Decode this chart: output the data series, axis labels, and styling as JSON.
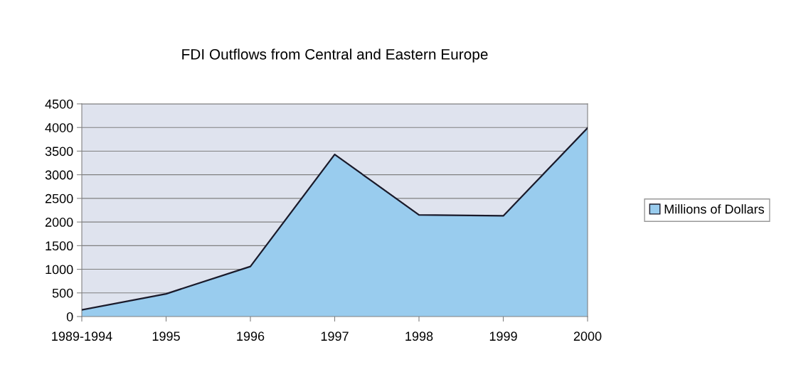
{
  "chart_data": {
    "type": "area",
    "title": "FDI Outflows from Central and Eastern Europe",
    "categories": [
      "1989-1994",
      "1995",
      "1996",
      "1997",
      "1998",
      "1999",
      "2000"
    ],
    "series": [
      {
        "name": "Millions of Dollars",
        "color": "#99ccee",
        "values": [
          140,
          480,
          1060,
          3430,
          2150,
          2130,
          3990
        ]
      }
    ],
    "ylim": [
      0,
      4500
    ],
    "yticks": [
      0,
      500,
      1000,
      1500,
      2000,
      2500,
      3000,
      3500,
      4000,
      4500
    ],
    "grid": "y",
    "legend": "right"
  }
}
